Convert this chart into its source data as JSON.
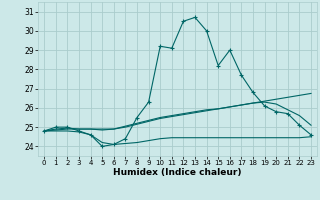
{
  "title": "",
  "xlabel": "Humidex (Indice chaleur)",
  "ylabel": "",
  "background_color": "#cce8e8",
  "grid_color": "#aacccc",
  "line_color": "#006666",
  "xlim": [
    -0.5,
    23.5
  ],
  "ylim": [
    23.5,
    31.5
  ],
  "yticks": [
    24,
    25,
    26,
    27,
    28,
    29,
    30,
    31
  ],
  "xticks": [
    0,
    1,
    2,
    3,
    4,
    5,
    6,
    7,
    8,
    9,
    10,
    11,
    12,
    13,
    14,
    15,
    16,
    17,
    18,
    19,
    20,
    21,
    22,
    23
  ],
  "series": [
    {
      "x": [
        0,
        1,
        2,
        3,
        4,
        5,
        6,
        7,
        8,
        9,
        10,
        11,
        12,
        13,
        14,
        15,
        16,
        17,
        18,
        19,
        20,
        21,
        22,
        23
      ],
      "y": [
        24.8,
        25.0,
        25.0,
        24.8,
        24.6,
        24.0,
        24.1,
        24.4,
        25.5,
        26.3,
        29.2,
        29.1,
        30.5,
        30.7,
        30.0,
        28.2,
        29.0,
        27.7,
        26.8,
        26.1,
        25.8,
        25.7,
        25.1,
        24.6
      ],
      "style": "dotted",
      "marker": "+"
    },
    {
      "x": [
        0,
        1,
        2,
        3,
        4,
        5,
        6,
        7,
        8,
        9,
        10,
        11,
        12,
        13,
        14,
        15,
        16,
        17,
        18,
        19,
        20,
        21,
        22,
        23
      ],
      "y": [
        24.8,
        24.9,
        24.95,
        24.9,
        24.9,
        24.85,
        24.9,
        25.05,
        25.2,
        25.35,
        25.5,
        25.6,
        25.7,
        25.8,
        25.9,
        25.95,
        26.05,
        26.15,
        26.25,
        26.3,
        26.2,
        25.9,
        25.6,
        25.1
      ],
      "style": "solid",
      "marker": null
    },
    {
      "x": [
        0,
        1,
        2,
        3,
        4,
        5,
        6,
        7,
        8,
        9,
        10,
        11,
        12,
        13,
        14,
        15,
        16,
        17,
        18,
        19,
        20,
        21,
        22,
        23
      ],
      "y": [
        24.8,
        24.85,
        24.9,
        24.9,
        24.9,
        24.9,
        24.9,
        25.0,
        25.15,
        25.3,
        25.45,
        25.55,
        25.65,
        25.75,
        25.85,
        25.95,
        26.05,
        26.15,
        26.25,
        26.35,
        26.45,
        26.55,
        26.65,
        26.75
      ],
      "style": "solid",
      "marker": null
    },
    {
      "x": [
        0,
        1,
        2,
        3,
        4,
        5,
        6,
        7,
        8,
        9,
        10,
        11,
        12,
        13,
        14,
        15,
        16,
        17,
        18,
        19,
        20,
        21,
        22,
        23
      ],
      "y": [
        24.8,
        24.8,
        24.8,
        24.75,
        24.6,
        24.2,
        24.1,
        24.15,
        24.2,
        24.3,
        24.4,
        24.45,
        24.45,
        24.45,
        24.45,
        24.45,
        24.45,
        24.45,
        24.45,
        24.45,
        24.45,
        24.45,
        24.45,
        24.5
      ],
      "style": "solid",
      "marker": null
    }
  ]
}
